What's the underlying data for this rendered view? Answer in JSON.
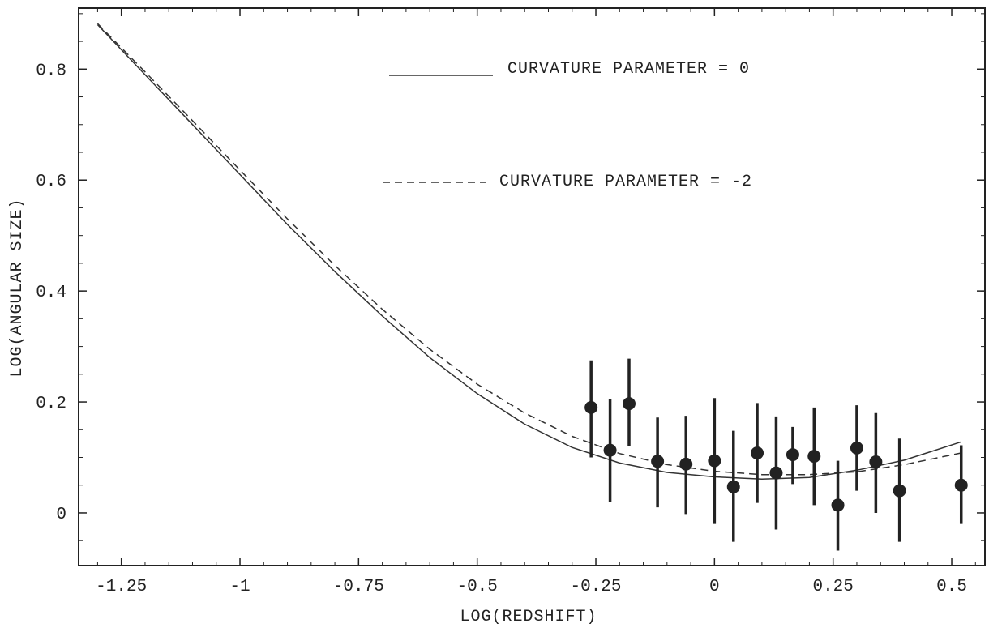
{
  "chart_data": {
    "type": "scatter",
    "title": "",
    "xlabel": "LOG(REDSHIFT)",
    "ylabel": "LOG(ANGULAR SIZE)",
    "xlim": [
      -1.34,
      0.57
    ],
    "ylim": [
      -0.095,
      0.91
    ],
    "xticks": [
      {
        "value": -1.25,
        "label": "-1.25"
      },
      {
        "value": -1,
        "label": "-1"
      },
      {
        "value": -0.75,
        "label": "-0.75"
      },
      {
        "value": -0.5,
        "label": "-0.5"
      },
      {
        "value": -0.25,
        "label": "-0.25"
      },
      {
        "value": 0,
        "label": "0"
      },
      {
        "value": 0.25,
        "label": "0.25"
      },
      {
        "value": 0.5,
        "label": "0.5"
      }
    ],
    "yticks": [
      {
        "value": 0,
        "label": "0"
      },
      {
        "value": 0.2,
        "label": "0.2"
      },
      {
        "value": 0.4,
        "label": "0.4"
      },
      {
        "value": 0.6,
        "label": "0.6"
      },
      {
        "value": 0.8,
        "label": "0.8"
      }
    ],
    "grid": false,
    "legend": {
      "position": "top-center",
      "entries": [
        {
          "label": "CURVATURE PARAMETER = 0",
          "style": "solid"
        },
        {
          "label": "CURVATURE PARAMETER = -2",
          "style": "dashed"
        }
      ]
    },
    "series": [
      {
        "kind": "line",
        "style": "solid",
        "x": [
          -1.3,
          -1.2,
          -1.1,
          -1.0,
          -0.9,
          -0.8,
          -0.7,
          -0.6,
          -0.5,
          -0.4,
          -0.3,
          -0.2,
          -0.1,
          0.0,
          0.1,
          0.2,
          0.3,
          0.4,
          0.52
        ],
        "y": [
          0.88,
          0.79,
          0.7,
          0.61,
          0.52,
          0.435,
          0.355,
          0.28,
          0.215,
          0.16,
          0.118,
          0.09,
          0.073,
          0.065,
          0.061,
          0.064,
          0.077,
          0.095,
          0.128
        ]
      },
      {
        "kind": "line",
        "style": "dashed",
        "x": [
          -1.3,
          -1.2,
          -1.1,
          -1.0,
          -0.9,
          -0.8,
          -0.7,
          -0.6,
          -0.5,
          -0.4,
          -0.3,
          -0.2,
          -0.1,
          0.0,
          0.1,
          0.2,
          0.3,
          0.4,
          0.52
        ],
        "y": [
          0.882,
          0.795,
          0.707,
          0.618,
          0.53,
          0.446,
          0.367,
          0.295,
          0.232,
          0.18,
          0.138,
          0.107,
          0.087,
          0.075,
          0.069,
          0.069,
          0.074,
          0.087,
          0.108
        ]
      },
      {
        "kind": "points",
        "x": [
          -0.26,
          -0.22,
          -0.18,
          -0.12,
          -0.06,
          0.0,
          0.04,
          0.09,
          0.13,
          0.165,
          0.21,
          0.26,
          0.3,
          0.34,
          0.39,
          0.52
        ],
        "y": [
          0.19,
          0.113,
          0.197,
          0.093,
          0.088,
          0.094,
          0.047,
          0.108,
          0.072,
          0.105,
          0.102,
          0.014,
          0.117,
          0.092,
          0.04,
          0.05
        ],
        "err_low": [
          0.1,
          0.02,
          0.12,
          0.01,
          -0.002,
          -0.02,
          -0.052,
          0.018,
          -0.03,
          0.052,
          0.014,
          -0.068,
          0.04,
          0.0,
          -0.052,
          -0.02
        ],
        "err_high": [
          0.275,
          0.205,
          0.278,
          0.172,
          0.175,
          0.207,
          0.148,
          0.198,
          0.174,
          0.155,
          0.19,
          0.094,
          0.194,
          0.18,
          0.134,
          0.122
        ]
      }
    ]
  }
}
